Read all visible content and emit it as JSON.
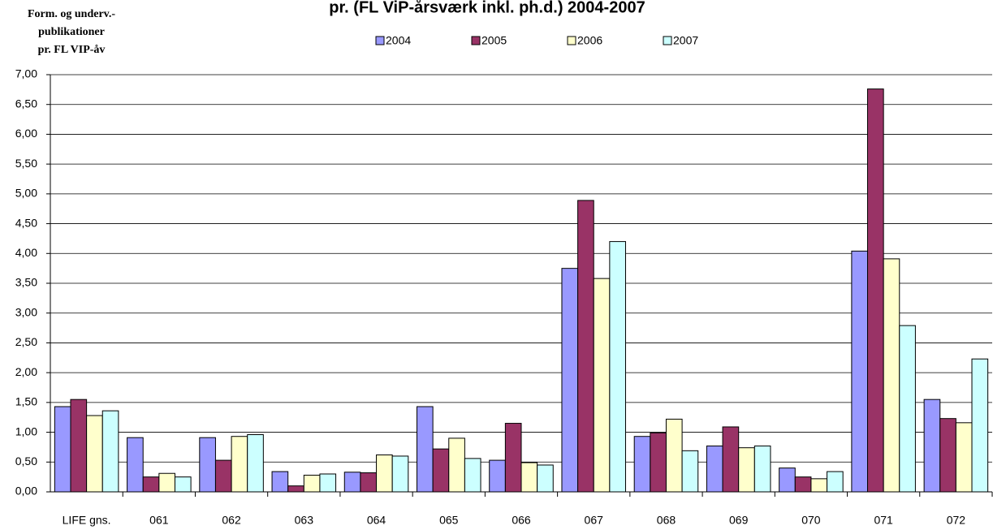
{
  "chart_data": {
    "type": "bar",
    "title": "pr. (FL ViP-årsværk inkl. ph.d.) 2004-2007",
    "ylabel": [
      "Form. og underv.-",
      "publikationer",
      "pr. FL VIP-åv"
    ],
    "categories": [
      "LIFE gns.",
      "061",
      "062",
      "063",
      "064",
      "065",
      "066",
      "067",
      "068",
      "069",
      "070",
      "071",
      "072"
    ],
    "series": [
      {
        "name": "2004",
        "color": "#9999ff",
        "values": [
          1.43,
          0.91,
          0.91,
          0.34,
          0.33,
          1.43,
          0.53,
          3.75,
          0.93,
          0.77,
          0.4,
          4.04,
          1.55
        ]
      },
      {
        "name": "2005",
        "color": "#993366",
        "values": [
          1.55,
          0.25,
          0.53,
          0.1,
          0.32,
          0.72,
          1.15,
          4.89,
          0.99,
          1.09,
          0.25,
          6.76,
          1.23
        ]
      },
      {
        "name": "2006",
        "color": "#ffffcc",
        "values": [
          1.28,
          0.31,
          0.93,
          0.28,
          0.62,
          0.9,
          0.49,
          3.58,
          1.22,
          0.74,
          0.22,
          3.91,
          1.16
        ]
      },
      {
        "name": "2007",
        "color": "#ccffff",
        "values": [
          1.36,
          0.25,
          0.96,
          0.3,
          0.6,
          0.56,
          0.45,
          4.2,
          0.69,
          0.77,
          0.34,
          2.79,
          2.23
        ]
      }
    ],
    "ylim": [
      0,
      7
    ],
    "yticks": [
      {
        "value": 0,
        "label": "0,00"
      },
      {
        "value": 0.5,
        "label": "0,50"
      },
      {
        "value": 1,
        "label": "1,00"
      },
      {
        "value": 1.5,
        "label": "1,50"
      },
      {
        "value": 2,
        "label": "2,00"
      },
      {
        "value": 2.5,
        "label": "2,50"
      },
      {
        "value": 3,
        "label": "3,00"
      },
      {
        "value": 3.5,
        "label": "3,50"
      },
      {
        "value": 4,
        "label": "4,00"
      },
      {
        "value": 4.5,
        "label": "4,50"
      },
      {
        "value": 5,
        "label": "5,00"
      },
      {
        "value": 5.5,
        "label": "5,50"
      },
      {
        "value": 6,
        "label": "6,00"
      },
      {
        "value": 6.5,
        "label": "6,50"
      },
      {
        "value": 7,
        "label": "7,00"
      }
    ],
    "grid": true,
    "legend": "top"
  }
}
